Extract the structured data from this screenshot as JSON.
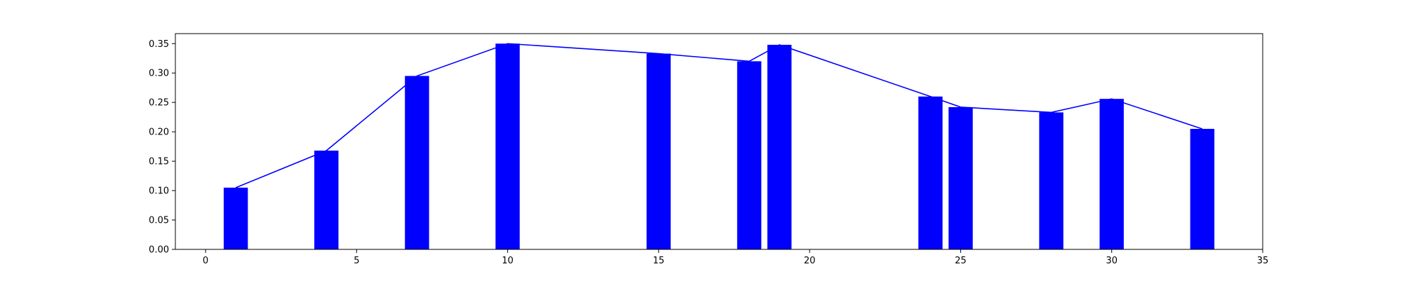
{
  "chart_data": {
    "type": "bar",
    "title": "",
    "xlabel": "",
    "ylabel": "",
    "xlim": [
      -1,
      35
    ],
    "ylim": [
      0,
      0.367
    ],
    "x_ticks": [
      0,
      5,
      10,
      15,
      20,
      25,
      30,
      35
    ],
    "x_tick_labels": [
      "0",
      "5",
      "10",
      "15",
      "20",
      "25",
      "30",
      "35"
    ],
    "y_ticks": [
      0.0,
      0.05,
      0.1,
      0.15,
      0.2,
      0.25,
      0.3,
      0.35
    ],
    "y_tick_labels": [
      "0.00",
      "0.05",
      "0.10",
      "0.15",
      "0.20",
      "0.25",
      "0.30",
      "0.35"
    ],
    "grid": false,
    "bar_width": 0.8,
    "color": "#0000ff",
    "series": [
      {
        "type": "bar",
        "x": [
          1,
          4,
          7,
          10,
          15,
          18,
          19,
          24,
          25,
          28,
          30,
          33
        ],
        "values": [
          0.105,
          0.168,
          0.295,
          0.35,
          0.333,
          0.32,
          0.348,
          0.26,
          0.242,
          0.233,
          0.256,
          0.205
        ]
      },
      {
        "type": "line",
        "x": [
          1,
          4,
          7,
          10,
          15,
          18,
          19,
          24,
          25,
          28,
          30,
          33
        ],
        "values": [
          0.105,
          0.168,
          0.295,
          0.35,
          0.333,
          0.32,
          0.348,
          0.26,
          0.242,
          0.233,
          0.256,
          0.205
        ]
      }
    ]
  }
}
